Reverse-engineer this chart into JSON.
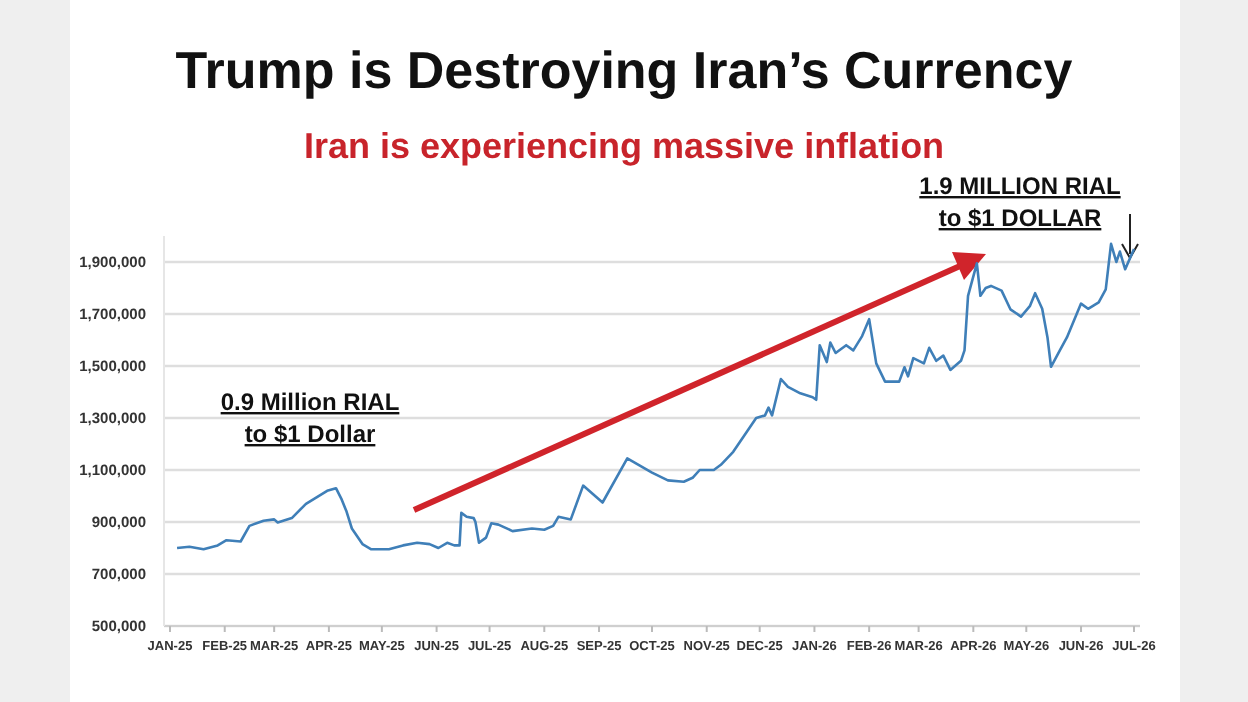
{
  "chart_data": {
    "type": "line",
    "title": "Trump is Destroying Iran’s Currency",
    "subtitle": "Iran is experiencing massive inflation",
    "annotations": [
      "0.9 Million RIAL\nto $1 Dollar",
      "1.9 MILLION RIAL\nto $1 DOLLAR"
    ],
    "xlim": [
      "2025-01-01",
      "2026-07-01"
    ],
    "xticks": [
      {
        "value": "2025-01-01",
        "label": "JAN-25"
      },
      {
        "value": "2025-02-01",
        "label": "FEB-25"
      },
      {
        "value": "2025-03-01",
        "label": "MAR-25"
      },
      {
        "value": "2025-04-01",
        "label": "APR-25"
      },
      {
        "value": "2025-05-01",
        "label": "MAY-25"
      },
      {
        "value": "2025-06-01",
        "label": "JUN-25"
      },
      {
        "value": "2025-07-01",
        "label": "JUL-25"
      },
      {
        "value": "2025-08-01",
        "label": "AUG-25"
      },
      {
        "value": "2025-09-01",
        "label": "SEP-25"
      },
      {
        "value": "2025-10-01",
        "label": "OCT-25"
      },
      {
        "value": "2025-11-01",
        "label": "NOV-25"
      },
      {
        "value": "2025-12-01",
        "label": "DEC-25"
      },
      {
        "value": "2026-01-01",
        "label": "JAN-26"
      },
      {
        "value": "2026-02-01",
        "label": "FEB-26"
      },
      {
        "value": "2026-03-01",
        "label": "MAR-26"
      },
      {
        "value": "2026-04-01",
        "label": "APR-26"
      },
      {
        "value": "2026-05-01",
        "label": "MAY-26"
      },
      {
        "value": "2026-06-01",
        "label": "JUN-26"
      },
      {
        "value": "2026-07-01",
        "label": "JUL-26"
      }
    ],
    "ylim": [
      500000,
      2000000
    ],
    "yticks": [
      {
        "value": 500000,
        "label": "500,000"
      },
      {
        "value": 700000,
        "label": "700,000"
      },
      {
        "value": 900000,
        "label": "900,000"
      },
      {
        "value": 1100000,
        "label": "1,100,000"
      },
      {
        "value": 1300000,
        "label": "1,300,000"
      },
      {
        "value": 1500000,
        "label": "1,500,000"
      },
      {
        "value": 1700000,
        "label": "1,700,000"
      },
      {
        "value": 1900000,
        "label": "1,900,000"
      }
    ],
    "grid": "y",
    "series": [
      {
        "color": "#3f7fb8",
        "x": [
          "2025-01-05",
          "2025-01-12",
          "2025-01-20",
          "2025-01-28",
          "2025-02-02",
          "2025-02-10",
          "2025-02-15",
          "2025-02-23",
          "2025-03-01",
          "2025-03-03",
          "2025-03-11",
          "2025-03-19",
          "2025-03-31",
          "2025-04-05",
          "2025-04-08",
          "2025-04-11",
          "2025-04-14",
          "2025-04-20",
          "2025-04-25",
          "2025-05-05",
          "2025-05-13",
          "2025-05-21",
          "2025-05-28",
          "2025-06-02",
          "2025-06-07",
          "2025-06-11",
          "2025-06-14",
          "2025-06-15",
          "2025-06-18",
          "2025-06-22",
          "2025-06-23",
          "2025-06-25",
          "2025-06-29",
          "2025-07-02",
          "2025-07-06",
          "2025-07-14",
          "2025-07-25",
          "2025-08-01",
          "2025-08-06",
          "2025-08-09",
          "2025-08-16",
          "2025-08-23",
          "2025-09-03",
          "2025-09-17",
          "2025-10-01",
          "2025-10-10",
          "2025-10-19",
          "2025-10-24",
          "2025-10-28",
          "2025-11-05",
          "2025-11-09",
          "2025-11-16",
          "2025-11-24",
          "2025-11-29",
          "2025-12-04",
          "2025-12-06",
          "2025-12-08",
          "2025-12-13",
          "2025-12-17",
          "2025-12-24",
          "2025-12-31",
          "2026-01-02",
          "2026-01-04",
          "2026-01-08",
          "2026-01-10",
          "2026-01-13",
          "2026-01-19",
          "2026-01-23",
          "2026-01-28",
          "2026-02-01",
          "2026-02-05",
          "2026-02-10",
          "2026-02-18",
          "2026-02-21",
          "2026-02-23",
          "2026-02-26",
          "2026-03-04",
          "2026-03-07",
          "2026-03-11",
          "2026-03-15",
          "2026-03-19",
          "2026-03-25",
          "2026-03-27",
          "2026-03-29",
          "2026-04-03",
          "2026-04-05",
          "2026-04-08",
          "2026-04-11",
          "2026-04-17",
          "2026-04-22",
          "2026-04-28",
          "2026-05-03",
          "2026-05-06",
          "2026-05-10",
          "2026-05-13",
          "2026-05-15",
          "2026-05-20",
          "2026-05-24",
          "2026-06-01",
          "2026-06-05",
          "2026-06-11",
          "2026-06-15",
          "2026-06-18",
          "2026-06-21",
          "2026-06-23",
          "2026-06-26",
          "2026-07-01"
        ],
        "values": [
          800000,
          805000,
          795000,
          810000,
          830000,
          825000,
          885000,
          905000,
          910000,
          898000,
          915000,
          970000,
          1020000,
          1030000,
          990000,
          940000,
          875000,
          815000,
          795000,
          795000,
          810000,
          820000,
          815000,
          800000,
          820000,
          810000,
          810000,
          935000,
          920000,
          915000,
          900000,
          820000,
          840000,
          895000,
          890000,
          865000,
          875000,
          870000,
          885000,
          920000,
          910000,
          1040000,
          975000,
          1145000,
          1090000,
          1060000,
          1055000,
          1070000,
          1100000,
          1100000,
          1120000,
          1170000,
          1250000,
          1300000,
          1310000,
          1340000,
          1310000,
          1450000,
          1420000,
          1395000,
          1380000,
          1370000,
          1580000,
          1515000,
          1590000,
          1550000,
          1580000,
          1560000,
          1615000,
          1680000,
          1510000,
          1440000,
          1440000,
          1495000,
          1460000,
          1530000,
          1510000,
          1570000,
          1520000,
          1540000,
          1485000,
          1520000,
          1560000,
          1770000,
          1895000,
          1770000,
          1800000,
          1808000,
          1790000,
          1718000,
          1690000,
          1730000,
          1780000,
          1720000,
          1610000,
          1497000,
          1560000,
          1610000,
          1740000,
          1720000,
          1745000,
          1795000,
          1970000,
          1900000,
          1940000,
          1872000,
          1950000
        ]
      }
    ]
  }
}
